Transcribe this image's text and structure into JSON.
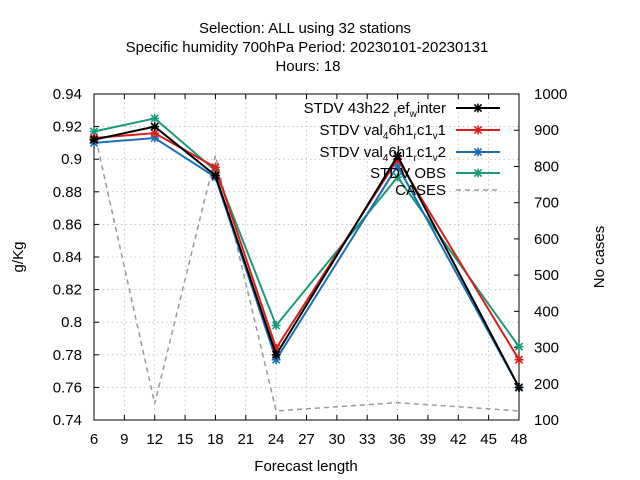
{
  "chart_data": {
    "type": "line",
    "title_lines": [
      "Selection: ALL using    32 stations",
      "Specific humidity 700hPa   Period: 20230101-20230131",
      "Hours:  18"
    ],
    "xlabel": "Forecast length",
    "ylabel": "g/Kg",
    "y2label": "No cases",
    "xlim": [
      6,
      48
    ],
    "xticks": [
      6,
      9,
      12,
      15,
      18,
      21,
      24,
      27,
      30,
      33,
      36,
      39,
      42,
      45,
      48
    ],
    "ylim": [
      0.74,
      0.94
    ],
    "yticks": [
      "0.74",
      "0.76",
      "0.78",
      "0.8",
      "0.82",
      "0.84",
      "0.86",
      "0.88",
      "0.9",
      "0.92",
      "0.94"
    ],
    "y2lim": [
      100,
      1000
    ],
    "y2ticks": [
      "100",
      "200",
      "300",
      "400",
      "500",
      "600",
      "700",
      "800",
      "900",
      "1000"
    ],
    "grid": true,
    "legend_position": "top-right",
    "x": [
      6,
      12,
      18,
      24,
      36,
      48
    ],
    "series": [
      {
        "name": "STDV 43h22",
        "legend_parts": [
          [
            "STDV 43h22 ",
            ""
          ],
          [
            "r",
            "sub"
          ],
          [
            "ef",
            ""
          ],
          [
            "w",
            "sub"
          ],
          [
            "inter",
            ""
          ]
        ],
        "color": "#000000",
        "axis": "y1",
        "dash": false,
        "values": [
          0.912,
          0.92,
          0.89,
          0.78,
          0.902,
          0.76
        ]
      },
      {
        "name": "STDV val",
        "legend_parts": [
          [
            "STDV val",
            ""
          ],
          [
            "4",
            "sub"
          ],
          [
            "6h1",
            ""
          ],
          [
            "r",
            "sub"
          ],
          [
            "c1",
            ""
          ],
          [
            "v",
            "sub"
          ],
          [
            "1",
            ""
          ]
        ],
        "color": "#dd1c1c",
        "axis": "y1",
        "dash": false,
        "values": [
          0.913,
          0.916,
          0.895,
          0.784,
          0.9,
          0.777
        ]
      },
      {
        "name": "STDV val",
        "legend_parts": [
          [
            "STDV val",
            ""
          ],
          [
            "4",
            "sub"
          ],
          [
            "6h1",
            ""
          ],
          [
            "r",
            "sub"
          ],
          [
            "c1",
            ""
          ],
          [
            "v",
            "sub"
          ],
          [
            "2",
            ""
          ]
        ],
        "color": "#1a6eb6",
        "axis": "y1",
        "dash": false,
        "values": [
          0.91,
          0.913,
          0.889,
          0.777,
          0.896,
          0.76
        ]
      },
      {
        "name": "STDV OBS",
        "legend_parts": [
          [
            "STDV OBS",
            ""
          ]
        ],
        "color": "#1a9a78",
        "axis": "y1",
        "dash": false,
        "values": [
          0.917,
          0.925,
          0.893,
          0.798,
          0.889,
          0.785
        ]
      },
      {
        "name": "CASES",
        "legend_parts": [
          [
            "CASES",
            ""
          ]
        ],
        "color": "#999999",
        "axis": "y2",
        "dash": true,
        "values": [
          900,
          145,
          830,
          125,
          148,
          125
        ]
      }
    ]
  }
}
